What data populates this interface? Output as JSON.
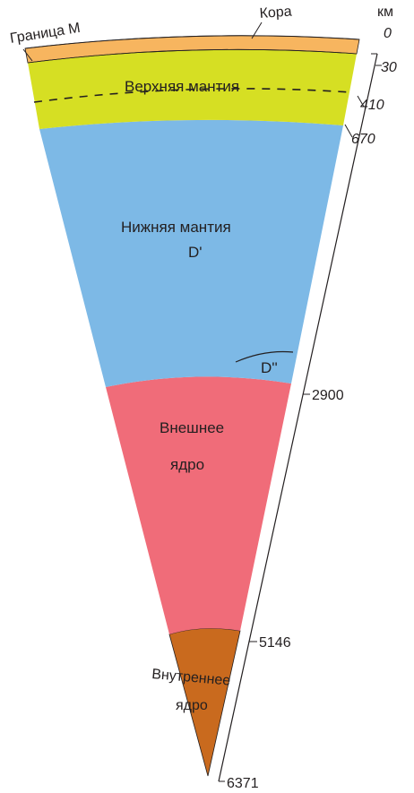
{
  "unit": "км",
  "labels": {
    "boundary_m": "Граница М",
    "crust": "Кора",
    "upper_mantle": "Верхняя мантия",
    "lower_mantle_line1": "Нижняя мантия",
    "lower_mantle_line2": "D'",
    "d_double_prime": "D''",
    "outer_core_line1": "Внешнее",
    "outer_core_line2": "ядро",
    "inner_core_line1": "Внутреннее",
    "inner_core_line2": "ядро"
  },
  "depth_ticks": [
    "0",
    "30",
    "410",
    "670",
    "2900",
    "5146",
    "6371"
  ],
  "colors": {
    "crust": "#f7b55f",
    "upper_mantle": "#d6df23",
    "lower_mantle": "#7db9e6",
    "outer_core": "#f06c79",
    "inner_core": "#c96a1e",
    "outline": "#231f20"
  }
}
